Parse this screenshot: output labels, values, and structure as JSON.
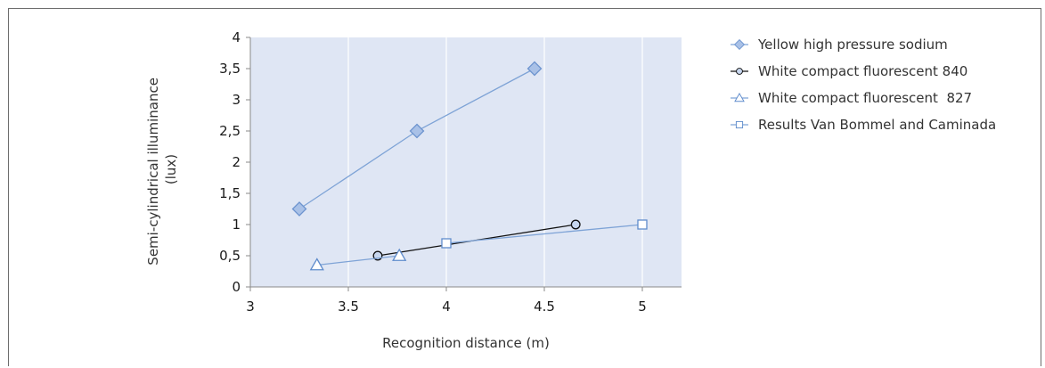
{
  "chart_data": {
    "type": "scatter",
    "xlabel": "Recognition distance (m)",
    "ylabel_lines": [
      "Semi-cylindrical illuminance",
      "(lux)"
    ],
    "xlim": [
      3,
      5.2
    ],
    "ylim": [
      0,
      4
    ],
    "x_ticks": [
      3,
      3.5,
      4,
      4.5,
      5
    ],
    "x_tick_labels": [
      "3",
      "3.5",
      "4",
      "4.5",
      "5"
    ],
    "y_ticks": [
      0,
      0.5,
      1,
      1.5,
      2,
      2.5,
      3,
      3.5,
      4
    ],
    "y_tick_labels": [
      "0",
      "0,5",
      "1",
      "1,5",
      "2",
      "2,5",
      "3",
      "3,5",
      "4"
    ],
    "grid": "vertical",
    "plot_background": "#dfe6f4",
    "legend_position": "right",
    "series": [
      {
        "name": "Yellow high pressure sodium",
        "marker": "diamond",
        "line_color": "#7ea3d6",
        "marker_fill": "#a9c1e7",
        "marker_stroke": "#6d94cf",
        "points": [
          [
            3.25,
            1.25
          ],
          [
            3.85,
            2.5
          ],
          [
            4.45,
            3.5
          ]
        ]
      },
      {
        "name": "White compact fluorescent 840",
        "marker": "circle",
        "line_color": "#111111",
        "marker_fill": "#c7d6ee",
        "marker_stroke": "#111111",
        "points": [
          [
            3.65,
            0.5
          ],
          [
            4.66,
            1.0
          ]
        ]
      },
      {
        "name": "White compact fluorescent  827",
        "marker": "triangle",
        "line_color": "#7ea3d6",
        "marker_fill": "#ffffff",
        "marker_stroke": "#5f8ccc",
        "points": [
          [
            3.34,
            0.35
          ],
          [
            3.76,
            0.5
          ]
        ]
      },
      {
        "name": "Results Van Bommel and Caminada",
        "marker": "square",
        "line_color": "#7ea3d6",
        "marker_fill": "#ffffff",
        "marker_stroke": "#5f8ccc",
        "points": [
          [
            4.0,
            0.7
          ],
          [
            5.0,
            1.0
          ]
        ]
      }
    ]
  }
}
